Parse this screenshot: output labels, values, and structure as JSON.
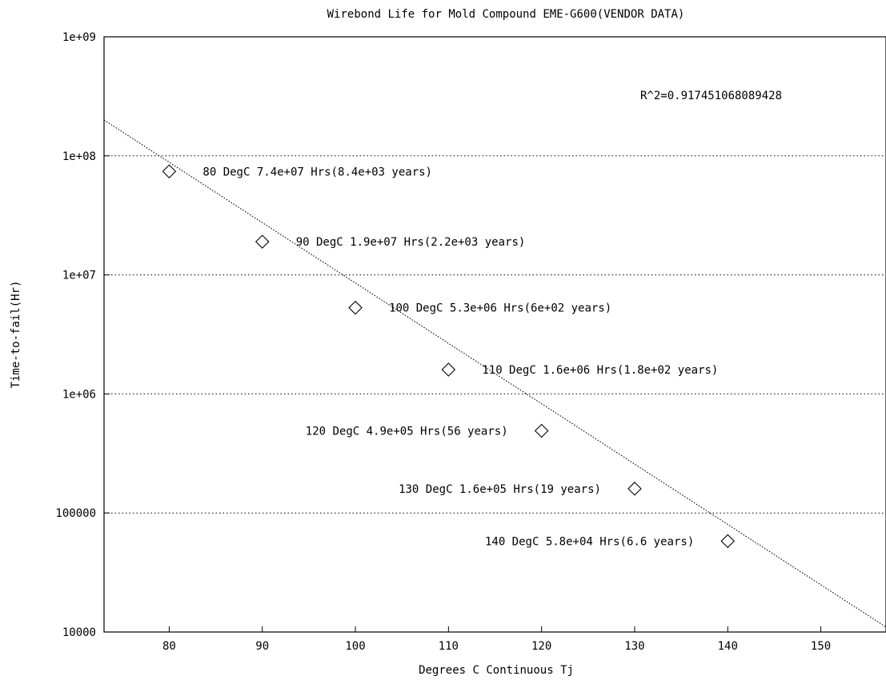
{
  "chart_data": {
    "type": "scatter",
    "title": "Wirebond Life for Mold Compound EME-G600(VENDOR DATA)",
    "xlabel": "Degrees C Continuous Tj",
    "ylabel": "Time-to-fail(Hr)",
    "xlim": [
      73,
      157
    ],
    "ylim": [
      10000,
      1000000000
    ],
    "y_scale": "log",
    "x_ticks": [
      80,
      90,
      100,
      110,
      120,
      130,
      140,
      150
    ],
    "y_ticks": [
      {
        "value": 10000,
        "label": "10000"
      },
      {
        "value": 100000,
        "label": "100000"
      },
      {
        "value": 1000000,
        "label": "1e+06"
      },
      {
        "value": 10000000,
        "label": "1e+07"
      },
      {
        "value": 100000000,
        "label": "1e+08"
      },
      {
        "value": 1000000000,
        "label": "1e+09"
      }
    ],
    "grid": "horizontal dotted",
    "annotation": "R^2=0.917451068089428",
    "points": [
      {
        "x": 80,
        "y": 74000000,
        "label": "80 DegC 7.4e+07 Hrs(8.4e+03 years)",
        "label_side": "right"
      },
      {
        "x": 90,
        "y": 19000000,
        "label": "90 DegC 1.9e+07 Hrs(2.2e+03 years)",
        "label_side": "right"
      },
      {
        "x": 100,
        "y": 5300000,
        "label": "100 DegC 5.3e+06 Hrs(6e+02 years)",
        "label_side": "right"
      },
      {
        "x": 110,
        "y": 1600000,
        "label": "110 DegC 1.6e+06 Hrs(1.8e+02 years)",
        "label_side": "right"
      },
      {
        "x": 120,
        "y": 490000,
        "label": "120 DegC 4.9e+05 Hrs(56 years)",
        "label_side": "left"
      },
      {
        "x": 130,
        "y": 160000,
        "label": "130 DegC 1.6e+05 Hrs(19 years)",
        "label_side": "left"
      },
      {
        "x": 140,
        "y": 58000,
        "label": "140 DegC 5.8e+04 Hrs(6.6 years)",
        "label_side": "left"
      }
    ],
    "fit_line": [
      {
        "x": 73,
        "y": 200000000
      },
      {
        "x": 157,
        "y": 11000
      }
    ],
    "marker": "diamond",
    "fit_style": "dotted"
  }
}
